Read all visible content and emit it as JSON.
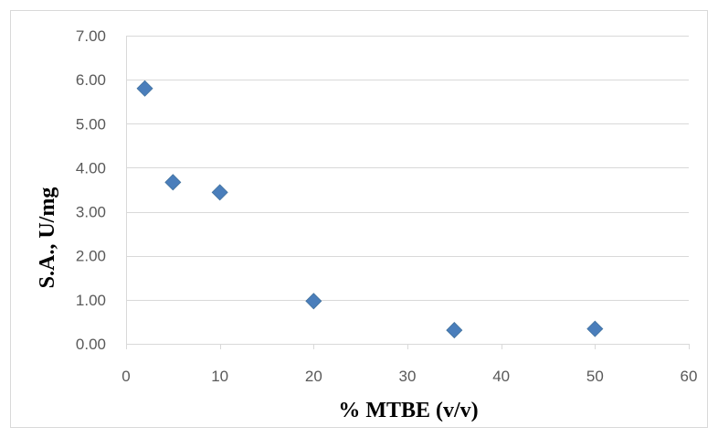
{
  "chart_data": {
    "type": "scatter",
    "title": "",
    "xlabel": "% MTBE (v/v)",
    "ylabel": "S.A., U/mg",
    "xlim": [
      0,
      60
    ],
    "ylim": [
      0,
      7
    ],
    "x_ticks": [
      "0",
      "10",
      "20",
      "30",
      "40",
      "50",
      "60"
    ],
    "y_ticks": [
      "0.00",
      "1.00",
      "2.00",
      "3.00",
      "4.00",
      "5.00",
      "6.00",
      "7.00"
    ],
    "grid": "horizontal",
    "legend": "none",
    "marker": "diamond",
    "marker_color": "#4a7ebb",
    "series": [
      {
        "x": [
          2,
          5,
          10,
          20,
          35,
          50
        ],
        "y": [
          5.8,
          3.67,
          3.44,
          0.97,
          0.31,
          0.34
        ]
      }
    ]
  }
}
